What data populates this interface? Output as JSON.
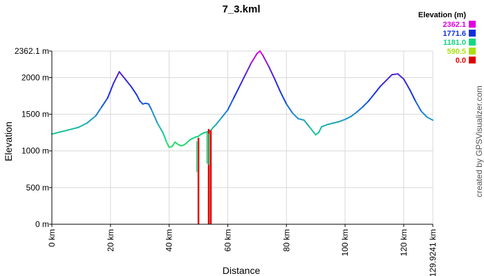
{
  "chart_data": {
    "type": "line",
    "title": "7_3.kml",
    "xlabel": "Distance",
    "ylabel": "Elevation",
    "xlim": [
      0,
      129.9241
    ],
    "ylim": [
      0,
      2362.1
    ],
    "x_ticks": [
      0,
      20,
      40,
      60,
      80,
      100,
      120,
      129.9241
    ],
    "x_tick_labels": [
      "0 km",
      "20 km",
      "40 km",
      "60 km",
      "80 km",
      "100 km",
      "120 km",
      "129.9241 km"
    ],
    "y_ticks": [
      0,
      500,
      1000,
      1500,
      2000,
      2362.1
    ],
    "y_tick_labels": [
      "0 m",
      "500 m",
      "1000 m",
      "1500 m",
      "2000 m",
      "2362.1 m"
    ],
    "grid": true,
    "legend": {
      "title": "Elevation (m)",
      "placement": "top-right",
      "entries": [
        {
          "label": "2362.1",
          "color": "#e000e0"
        },
        {
          "label": "1771.6",
          "color": "#1030e0"
        },
        {
          "label": "1181.0",
          "color": "#10d880"
        },
        {
          "label": "590.5",
          "color": "#a8e010"
        },
        {
          "label": "0.0",
          "color": "#e00000"
        }
      ]
    },
    "credit": "created by GPSVisualizer.com",
    "series": [
      {
        "x": [
          0,
          3,
          6,
          9,
          12,
          15,
          17,
          19,
          21,
          22,
          23,
          25,
          27,
          29,
          30,
          31,
          32,
          33,
          34,
          36,
          38,
          39,
          40,
          41,
          42,
          43,
          44,
          45,
          46,
          47,
          48,
          49,
          50,
          51,
          52,
          53,
          54,
          55,
          56,
          58,
          60,
          62,
          64,
          66,
          68,
          70,
          71,
          72,
          74,
          76,
          78,
          80,
          82,
          84,
          86,
          88,
          90,
          91,
          92,
          94,
          96,
          98,
          100,
          102,
          104,
          106,
          108,
          110,
          112,
          114,
          116,
          118,
          120,
          122,
          124,
          126,
          128,
          129.9241
        ],
        "y": [
          1230,
          1260,
          1290,
          1320,
          1380,
          1480,
          1600,
          1720,
          1920,
          2000,
          2080,
          1980,
          1880,
          1760,
          1680,
          1640,
          1650,
          1640,
          1560,
          1380,
          1240,
          1130,
          1050,
          1060,
          1120,
          1090,
          1070,
          1080,
          1110,
          1150,
          1170,
          1190,
          1200,
          1230,
          1250,
          1260,
          1270,
          1320,
          1360,
          1460,
          1560,
          1720,
          1880,
          2040,
          2200,
          2330,
          2362,
          2300,
          2150,
          1980,
          1800,
          1640,
          1520,
          1440,
          1420,
          1320,
          1220,
          1250,
          1330,
          1360,
          1380,
          1400,
          1430,
          1470,
          1530,
          1600,
          1680,
          1780,
          1880,
          1960,
          2040,
          2050,
          1980,
          1840,
          1680,
          1540,
          1460,
          1420
        ]
      }
    ],
    "spikes": [
      {
        "x": 50,
        "y": 1180
      },
      {
        "x": 53.5,
        "y": 1300
      },
      {
        "x": 54.2,
        "y": 1280
      }
    ]
  }
}
